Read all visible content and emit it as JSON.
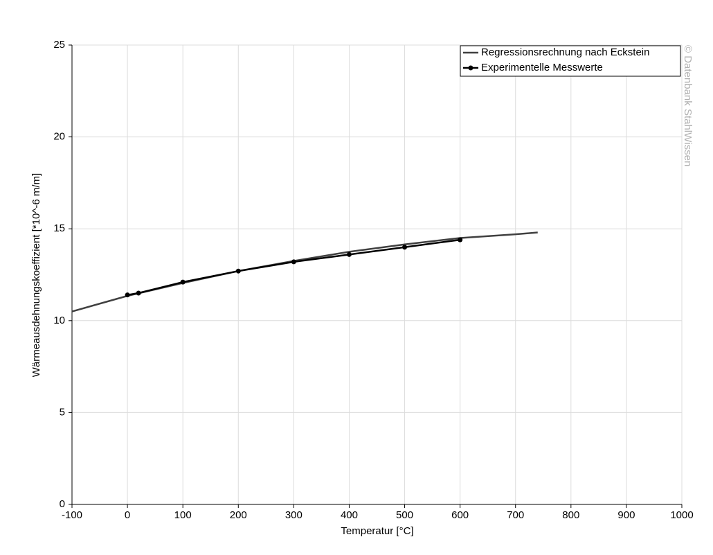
{
  "chart_data": {
    "type": "line",
    "xlabel": "Temperatur [°C]",
    "ylabel": "Wärmeausdehnungskoeffizient [*10^-6 m/m]",
    "watermark": "© Datenbank StahlWissen",
    "xlim": [
      -100,
      1000
    ],
    "xticks": [
      -100,
      0,
      100,
      200,
      300,
      400,
      500,
      600,
      700,
      800,
      900,
      1000
    ],
    "ylim": [
      0,
      25
    ],
    "yticks": [
      0,
      5,
      10,
      15,
      20,
      25
    ],
    "grid": true,
    "legend": "upper right",
    "series": [
      {
        "name": "Regressionsrechnung nach Eckstein",
        "color": "#404040",
        "markers": false,
        "x": [
          -100,
          0,
          100,
          200,
          300,
          400,
          500,
          600,
          700,
          740
        ],
        "values": [
          10.5,
          11.35,
          12.05,
          12.7,
          13.25,
          13.75,
          14.15,
          14.5,
          14.7,
          14.8
        ]
      },
      {
        "name": "Experimentelle Messwerte",
        "color": "#000000",
        "markers": true,
        "x": [
          0,
          20,
          100,
          200,
          300,
          400,
          500,
          600
        ],
        "values": [
          11.4,
          11.5,
          12.1,
          12.7,
          13.2,
          13.6,
          14.0,
          14.4
        ]
      }
    ]
  }
}
